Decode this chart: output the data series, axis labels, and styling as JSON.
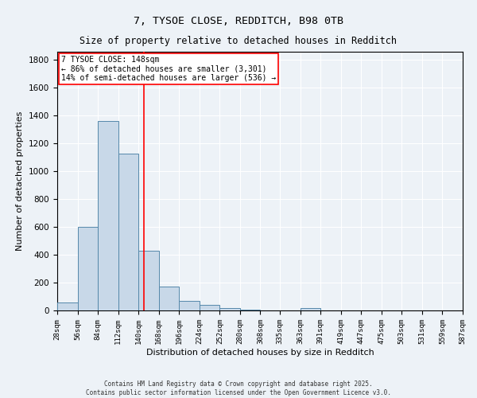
{
  "title_line1": "7, TYSOE CLOSE, REDDITCH, B98 0TB",
  "title_line2": "Size of property relative to detached houses in Redditch",
  "xlabel": "Distribution of detached houses by size in Redditch",
  "ylabel": "Number of detached properties",
  "bin_edges": [
    28,
    56,
    84,
    112,
    140,
    168,
    196,
    224,
    252,
    280,
    308,
    335,
    363,
    391,
    419,
    447,
    475,
    503,
    531,
    559,
    587
  ],
  "bar_heights": [
    60,
    600,
    1360,
    1130,
    430,
    170,
    70,
    40,
    20,
    5,
    0,
    0,
    15,
    0,
    0,
    0,
    0,
    0,
    0,
    0
  ],
  "bar_color": "#c8d8e8",
  "bar_edge_color": "#5588aa",
  "vline_x": 148,
  "vline_color": "red",
  "annotation_title": "7 TYSOE CLOSE: 148sqm",
  "annotation_line1": "← 86% of detached houses are smaller (3,301)",
  "annotation_line2": "14% of semi-detached houses are larger (536) →",
  "annotation_box_color": "white",
  "annotation_box_edge": "red",
  "ylim": [
    0,
    1860
  ],
  "yticks": [
    0,
    200,
    400,
    600,
    800,
    1000,
    1200,
    1400,
    1600,
    1800
  ],
  "background_color": "#edf2f7",
  "grid_color": "white",
  "footer_line1": "Contains HM Land Registry data © Crown copyright and database right 2025.",
  "footer_line2": "Contains public sector information licensed under the Open Government Licence v3.0."
}
